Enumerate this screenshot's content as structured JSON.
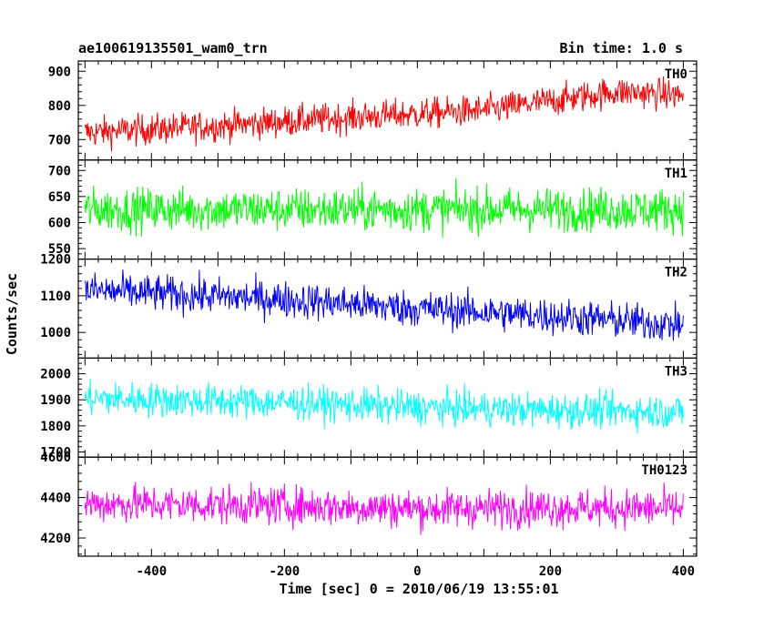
{
  "chart_data": {
    "type": "line",
    "title": "ae100619135501_wam0_trn",
    "subtitle": "Bin time: 1.0 s",
    "xlabel": "Time [sec] 0 = 2010/06/19 13:55:01",
    "ylabel": "Counts/sec",
    "xlim": [
      -510,
      420
    ],
    "xticks": [
      -400,
      -200,
      0,
      200,
      400
    ],
    "grid": false,
    "panels": [
      {
        "name": "TH0",
        "color": "#ff0000",
        "ylim": [
          640,
          930
        ],
        "yticks": [
          700,
          800,
          900
        ],
        "trend": [
          [
            -500,
            720
          ],
          [
            -300,
            740
          ],
          [
            -100,
            765
          ],
          [
            100,
            785
          ],
          [
            300,
            840
          ],
          [
            400,
            830
          ]
        ],
        "noise": 38
      },
      {
        "name": "TH1",
        "color": "#00ff00",
        "ylim": [
          530,
          720
        ],
        "yticks": [
          550,
          600,
          650,
          700
        ],
        "trend": [
          [
            -500,
            625
          ],
          [
            400,
            625
          ]
        ],
        "noise": 35
      },
      {
        "name": "TH2",
        "color": "#0000ff",
        "ylim": [
          930,
          1200
        ],
        "yticks": [
          1000,
          1100,
          1200
        ],
        "trend": [
          [
            -500,
            1115
          ],
          [
            -200,
            1090
          ],
          [
            0,
            1065
          ],
          [
            200,
            1045
          ],
          [
            400,
            1020
          ]
        ],
        "noise": 42
      },
      {
        "name": "TH3",
        "color": "#00ffff",
        "ylim": [
          1680,
          2060
        ],
        "yticks": [
          1700,
          1800,
          1900,
          2000
        ],
        "trend": [
          [
            -500,
            1905
          ],
          [
            -200,
            1890
          ],
          [
            0,
            1870
          ],
          [
            200,
            1860
          ],
          [
            400,
            1855
          ]
        ],
        "noise": 55
      },
      {
        "name": "TH0123",
        "color": "#ff00ff",
        "ylim": [
          4110,
          4600
        ],
        "yticks": [
          4200,
          4400,
          4600
        ],
        "trend": [
          [
            -500,
            4370
          ],
          [
            -200,
            4360
          ],
          [
            0,
            4345
          ],
          [
            200,
            4350
          ],
          [
            400,
            4345
          ]
        ],
        "noise": 80
      }
    ]
  }
}
